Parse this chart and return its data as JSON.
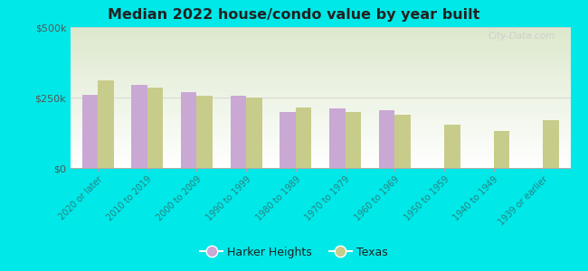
{
  "title": "Median 2022 house/condo value by year built",
  "categories": [
    "2020 or later",
    "2010 to 2019",
    "2000 to 2009",
    "1990 to 1999",
    "1980 to 1989",
    "1970 to 1979",
    "1960 to 1969",
    "1950 to 1959",
    "1940 to 1949",
    "1939 or earlier"
  ],
  "harker_heights": [
    260000,
    295000,
    270000,
    255000,
    200000,
    210000,
    205000,
    null,
    null,
    null
  ],
  "texas": [
    310000,
    285000,
    255000,
    250000,
    215000,
    200000,
    188000,
    155000,
    132000,
    170000
  ],
  "harker_color": "#c9a8d4",
  "texas_color": "#c8cc8a",
  "background_color": "#00e8e8",
  "plot_bg_top": "#dce8cc",
  "plot_bg_bottom": "#f0f8e8",
  "y_ticks": [
    0,
    250000,
    500000
  ],
  "y_tick_labels": [
    "$0",
    "$250k",
    "$500k"
  ],
  "ylim": [
    0,
    500000
  ],
  "legend_labels": [
    "Harker Heights",
    "Texas"
  ],
  "watermark": "City-Data.com"
}
